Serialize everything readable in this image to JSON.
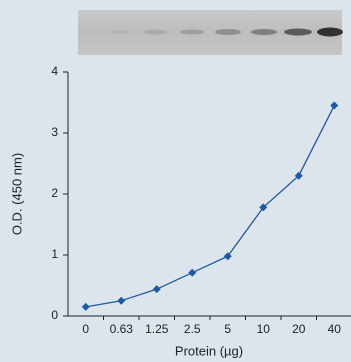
{
  "chart_data": {
    "type": "line",
    "categories": [
      "0",
      "0.63",
      "1.25",
      "2.5",
      "5",
      "10",
      "20",
      "40"
    ],
    "values": [
      0.15,
      0.25,
      0.44,
      0.71,
      0.98,
      1.78,
      2.3,
      3.45
    ],
    "color": "#1c5aa3",
    "x_label": "Protein (µg)",
    "y_label": "O.D. (450 nm)",
    "ylim": [
      0,
      4
    ],
    "yticks": [
      0,
      1,
      2,
      3,
      4
    ]
  }
}
